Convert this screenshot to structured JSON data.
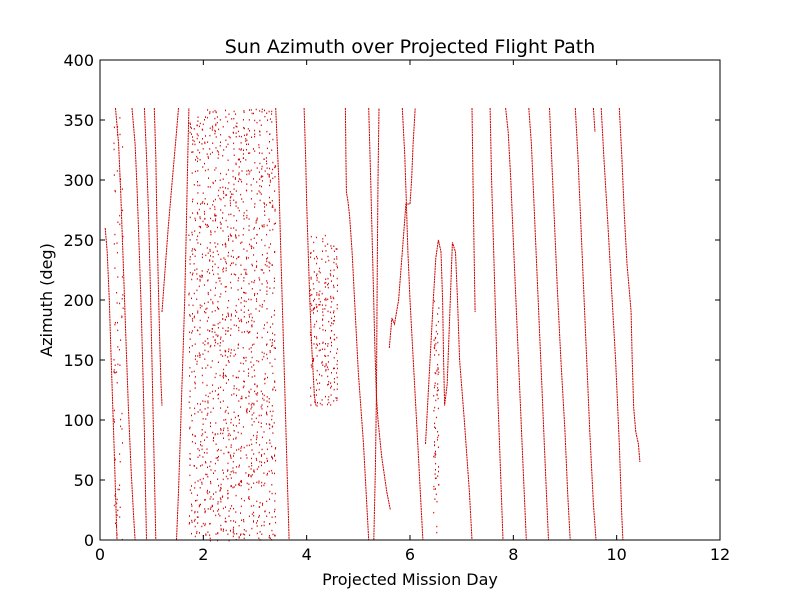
{
  "chart_data": {
    "type": "scatter",
    "title": "Sun Azimuth over Projected Flight Path",
    "xlabel": "Projected Mission Day",
    "ylabel": "Azimuth (deg)",
    "xlim": [
      0,
      12
    ],
    "ylim": [
      0,
      400
    ],
    "xticks": [
      0,
      2,
      4,
      6,
      8,
      10,
      12
    ],
    "yticks": [
      0,
      50,
      100,
      150,
      200,
      250,
      300,
      350,
      400
    ],
    "xtick_labels": [
      "0",
      "2",
      "4",
      "6",
      "8",
      "10",
      "12"
    ],
    "ytick_labels": [
      "0",
      "50",
      "100",
      "150",
      "200",
      "250",
      "300",
      "350",
      "400"
    ],
    "grid": false,
    "marker": "point",
    "series": [
      {
        "color": "#cc0000",
        "traces": [
          [
            [
              0.1,
              260
            ],
            [
              0.14,
              240
            ],
            [
              0.18,
              200
            ],
            [
              0.21,
              160
            ],
            [
              0.24,
              120
            ],
            [
              0.27,
              80
            ],
            [
              0.3,
              40
            ],
            [
              0.33,
              0
            ]
          ],
          [
            [
              0.3,
              360
            ],
            [
              0.36,
              330
            ],
            [
              0.4,
              290
            ],
            [
              0.45,
              230
            ],
            [
              0.5,
              170
            ],
            [
              0.55,
              110
            ],
            [
              0.6,
              60
            ],
            [
              0.65,
              20
            ],
            [
              0.68,
              0
            ]
          ],
          [
            [
              0.62,
              360
            ],
            [
              0.68,
              330
            ],
            [
              0.72,
              290
            ],
            [
              0.76,
              240
            ],
            [
              0.8,
              190
            ],
            [
              0.83,
              140
            ],
            [
              0.86,
              90
            ],
            [
              0.88,
              40
            ],
            [
              0.9,
              0
            ]
          ],
          [
            [
              0.86,
              360
            ],
            [
              0.9,
              320
            ],
            [
              0.94,
              270
            ],
            [
              0.97,
              220
            ],
            [
              1.0,
              160
            ],
            [
              1.03,
              100
            ],
            [
              1.06,
              40
            ],
            [
              1.08,
              0
            ]
          ],
          [
            [
              1.05,
              360
            ],
            [
              1.08,
              320
            ],
            [
              1.1,
              270
            ],
            [
              1.13,
              210
            ],
            [
              1.16,
              160
            ],
            [
              1.18,
              130
            ],
            [
              1.2,
              112
            ]
          ],
          [
            [
              1.2,
              190
            ],
            [
              1.25,
              220
            ],
            [
              1.32,
              260
            ],
            [
              1.4,
              300
            ],
            [
              1.48,
              340
            ],
            [
              1.52,
              360
            ]
          ],
          [
            [
              1.48,
              0
            ],
            [
              1.52,
              40
            ],
            [
              1.55,
              80
            ],
            [
              1.58,
              120
            ],
            [
              1.61,
              160
            ],
            [
              1.64,
              200
            ],
            [
              1.66,
              240
            ],
            [
              1.68,
              280
            ],
            [
              1.7,
              320
            ],
            [
              1.72,
              360
            ]
          ],
          [
            [
              3.4,
              360
            ],
            [
              3.46,
              300
            ],
            [
              3.5,
              240
            ],
            [
              3.54,
              180
            ],
            [
              3.58,
              120
            ],
            [
              3.62,
              60
            ],
            [
              3.66,
              0
            ]
          ],
          [
            [
              3.95,
              360
            ],
            [
              3.98,
              320
            ],
            [
              4.0,
              280
            ],
            [
              4.03,
              240
            ],
            [
              4.06,
              200
            ],
            [
              4.1,
              160
            ],
            [
              4.15,
              120
            ],
            [
              4.18,
              112
            ]
          ],
          [
            [
              4.75,
              360
            ],
            [
              4.76,
              320
            ],
            [
              4.77,
              290
            ],
            [
              4.8,
              282
            ],
            [
              4.83,
              270
            ],
            [
              4.88,
              240
            ],
            [
              4.95,
              180
            ],
            [
              5.0,
              140
            ],
            [
              5.05,
              110
            ],
            [
              5.1,
              80
            ],
            [
              5.15,
              40
            ],
            [
              5.2,
              0
            ]
          ],
          [
            [
              5.2,
              360
            ],
            [
              5.24,
              300
            ],
            [
              5.28,
              230
            ],
            [
              5.32,
              160
            ],
            [
              5.35,
              120
            ],
            [
              5.38,
              100
            ],
            [
              5.45,
              70
            ],
            [
              5.55,
              40
            ],
            [
              5.62,
              25
            ]
          ],
          [
            [
              5.3,
              0
            ],
            [
              5.33,
              60
            ],
            [
              5.35,
              120
            ],
            [
              5.36,
              180
            ],
            [
              5.37,
              240
            ],
            [
              5.38,
              300
            ],
            [
              5.4,
              360
            ]
          ],
          [
            [
              5.6,
              160
            ],
            [
              5.65,
              185
            ],
            [
              5.7,
              180
            ],
            [
              5.78,
              200
            ],
            [
              5.85,
              240
            ],
            [
              5.92,
              280
            ],
            [
              6.0,
              280
            ]
          ],
          [
            [
              6.0,
              280
            ],
            [
              6.03,
              300
            ],
            [
              6.06,
              330
            ],
            [
              6.1,
              360
            ]
          ],
          [
            [
              5.85,
              360
            ],
            [
              5.9,
              320
            ],
            [
              5.93,
              280
            ],
            [
              5.96,
              240
            ],
            [
              6.0,
              200
            ],
            [
              6.05,
              160
            ],
            [
              6.1,
              120
            ],
            [
              6.15,
              80
            ],
            [
              6.2,
              40
            ],
            [
              6.25,
              0
            ]
          ],
          [
            [
              6.3,
              80
            ],
            [
              6.35,
              120
            ],
            [
              6.4,
              160
            ],
            [
              6.45,
              200
            ],
            [
              6.5,
              235
            ],
            [
              6.55,
              250
            ],
            [
              6.6,
              240
            ],
            [
              6.63,
              200
            ],
            [
              6.65,
              150
            ],
            [
              6.67,
              112
            ],
            [
              6.72,
              130
            ],
            [
              6.78,
              200
            ],
            [
              6.82,
              248
            ],
            [
              6.88,
              240
            ],
            [
              6.92,
              200
            ],
            [
              6.96,
              150
            ],
            [
              7.05,
              100
            ],
            [
              7.15,
              40
            ],
            [
              7.2,
              0
            ]
          ],
          [
            [
              7.2,
              360
            ],
            [
              7.22,
              300
            ],
            [
              7.24,
              240
            ],
            [
              7.26,
              190
            ]
          ],
          [
            [
              7.55,
              360
            ],
            [
              7.58,
              300
            ],
            [
              7.62,
              240
            ],
            [
              7.66,
              180
            ],
            [
              7.7,
              120
            ],
            [
              7.75,
              60
            ],
            [
              7.8,
              0
            ]
          ],
          [
            [
              7.85,
              360
            ],
            [
              7.9,
              340
            ],
            [
              7.95,
              300
            ],
            [
              8.0,
              250
            ],
            [
              8.05,
              200
            ],
            [
              8.12,
              130
            ],
            [
              8.18,
              70
            ],
            [
              8.25,
              0
            ]
          ],
          [
            [
              8.3,
              360
            ],
            [
              8.35,
              330
            ],
            [
              8.4,
              280
            ],
            [
              8.45,
              230
            ],
            [
              8.5,
              180
            ],
            [
              8.55,
              130
            ],
            [
              8.6,
              80
            ],
            [
              8.65,
              30
            ],
            [
              8.68,
              0
            ]
          ],
          [
            [
              8.7,
              360
            ],
            [
              8.75,
              310
            ],
            [
              8.8,
              260
            ],
            [
              8.85,
              210
            ],
            [
              8.92,
              150
            ],
            [
              9.0,
              90
            ],
            [
              9.05,
              40
            ],
            [
              9.1,
              0
            ]
          ],
          [
            [
              9.2,
              360
            ],
            [
              9.25,
              320
            ],
            [
              9.3,
              270
            ],
            [
              9.36,
              210
            ],
            [
              9.42,
              150
            ],
            [
              9.48,
              90
            ],
            [
              9.55,
              30
            ],
            [
              9.6,
              0
            ]
          ],
          [
            [
              9.55,
              360
            ],
            [
              9.58,
              340
            ]
          ],
          [
            [
              9.7,
              360
            ],
            [
              9.75,
              320
            ],
            [
              9.82,
              270
            ],
            [
              9.9,
              210
            ],
            [
              9.98,
              150
            ],
            [
              10.05,
              80
            ],
            [
              10.1,
              20
            ],
            [
              10.12,
              0
            ]
          ],
          [
            [
              10.05,
              360
            ],
            [
              10.1,
              320
            ],
            [
              10.15,
              270
            ],
            [
              10.2,
              230
            ],
            [
              10.25,
              205
            ],
            [
              10.28,
              190
            ],
            [
              10.3,
              150
            ],
            [
              10.33,
              110
            ],
            [
              10.37,
              90
            ],
            [
              10.42,
              80
            ],
            [
              10.45,
              65
            ]
          ]
        ]
      }
    ],
    "dense_bands": [
      {
        "x_range": [
          0.25,
          0.45
        ],
        "y_range": [
          0,
          360
        ],
        "density": "sparse-dotted"
      },
      {
        "x_range": [
          1.7,
          3.4
        ],
        "y_range": [
          0,
          360
        ],
        "density": "dense-vertical-dotted"
      },
      {
        "x_range": [
          4.05,
          4.6
        ],
        "y_range": [
          112,
          255
        ],
        "density": "oscillating-dotted"
      },
      {
        "x_range": [
          6.45,
          6.55
        ],
        "y_range": [
          0,
          200
        ],
        "density": "sparse-dotted"
      }
    ]
  }
}
